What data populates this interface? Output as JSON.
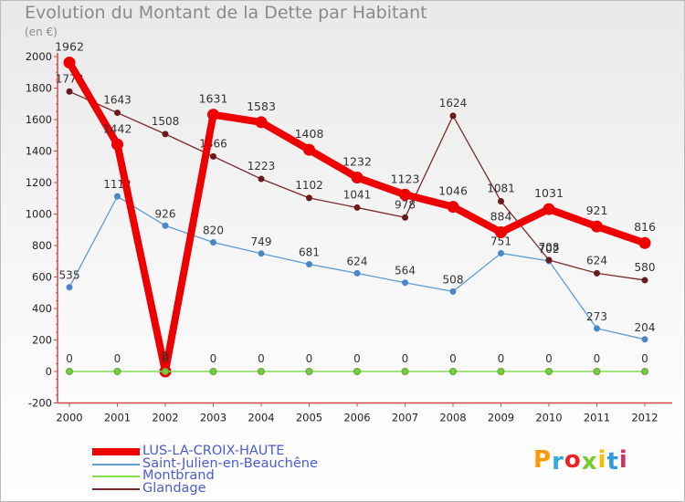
{
  "chart_data": {
    "type": "line",
    "title": "Evolution du Montant de la Dette par Habitant",
    "ylabel": "(en €)",
    "xlabel": "",
    "ylim": [
      -200,
      2000
    ],
    "yticks": [
      -200,
      0,
      200,
      400,
      600,
      800,
      1000,
      1200,
      1400,
      1600,
      1800,
      2000
    ],
    "grid": false,
    "legend_position": "bottom-left",
    "categories": [
      "2000",
      "2001",
      "2002",
      "2003",
      "2004",
      "2005",
      "2006",
      "2007",
      "2008",
      "2009",
      "2010",
      "2011",
      "2012"
    ],
    "series": [
      {
        "name": "LUS-LA-CROIX-HAUTE",
        "color": "#ee0000",
        "values": [
          1962,
          1442,
          0,
          1631,
          1583,
          1408,
          1232,
          1123,
          1046,
          884,
          1031,
          921,
          816
        ]
      },
      {
        "name": "Saint-Julien-en-Beauchêne",
        "color": "#5e9bd2",
        "values": [
          535,
          1112,
          926,
          820,
          749,
          681,
          624,
          564,
          508,
          751,
          702,
          273,
          204
        ]
      },
      {
        "name": "Montbrand",
        "color": "#88dd55",
        "values": [
          0,
          0,
          0,
          0,
          0,
          0,
          0,
          0,
          0,
          0,
          0,
          0,
          0
        ]
      },
      {
        "name": "Glandage",
        "color": "#7a2a2a",
        "values": [
          1778,
          1643,
          1508,
          1366,
          1223,
          1102,
          1041,
          978,
          1624,
          1081,
          708,
          624,
          580
        ]
      }
    ]
  },
  "logo": {
    "letters": [
      "P",
      "r",
      "o",
      "x",
      "i",
      "t",
      "i"
    ],
    "colors": [
      "#ff9900",
      "#33aadd",
      "#ee2222",
      "#77cc33",
      "#ffbb00",
      "#3399dd",
      "#cc3366"
    ]
  }
}
